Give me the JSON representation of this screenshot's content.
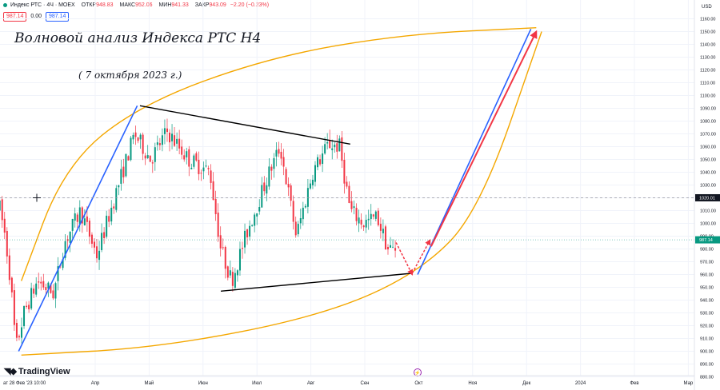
{
  "header": {
    "symbol": "Индекс РТС · 4Ч · MOEX",
    "open_label": "ОТКР",
    "open_value": "948.83",
    "high_label": "МАКС",
    "high_value": "952.06",
    "low_label": "МИН",
    "low_value": "941.33",
    "close_label": "ЗАКР",
    "close_value": "943.09",
    "change": "−2.20 (−0.23%)",
    "bid": "987.14",
    "spread": "0.00",
    "ask": "987.14"
  },
  "annotations": {
    "title": "Волновой анализ Индекса РТС Н4",
    "date": "( 7 октября 2023 г.)"
  },
  "branding": {
    "logo": "TradingView"
  },
  "bottom_info": "ат 28 Фев '23   10:00",
  "colors": {
    "bull_candle": "#089981",
    "bear_candle": "#f23645",
    "impulse_line": "#2962ff",
    "forecast_line": "#f23645",
    "channel_curve": "#f4a700",
    "triangle_line": "#000000"
  },
  "chart_data": {
    "type": "candlestick",
    "currency": "USD",
    "y_range": [
      880,
      1170
    ],
    "price_axis_ticks": [
      880,
      890,
      900,
      910,
      920,
      930,
      940,
      950,
      960,
      970,
      980,
      990,
      1000,
      1010,
      1020,
      1030,
      1040,
      1050,
      1060,
      1070,
      1080,
      1090,
      1100,
      1110,
      1120,
      1130,
      1140,
      1150,
      1160
    ],
    "time_axis_labels": [
      "Апр",
      "Май",
      "Июн",
      "Июл",
      "Авг",
      "Сен",
      "Окт",
      "Ноя",
      "Дек",
      "2024",
      "Фев",
      "Мар"
    ],
    "current_price": "987.14",
    "crosshair_price": "1020.01",
    "price_path": [
      {
        "t": 0.0,
        "p": 1012
      },
      {
        "t": 0.1,
        "p": 990
      },
      {
        "t": 0.2,
        "p": 955
      },
      {
        "t": 0.3,
        "p": 902
      },
      {
        "t": 0.45,
        "p": 930
      },
      {
        "t": 0.7,
        "p": 955
      },
      {
        "t": 1.0,
        "p": 945
      },
      {
        "t": 1.2,
        "p": 985
      },
      {
        "t": 1.5,
        "p": 1010
      },
      {
        "t": 1.8,
        "p": 975
      },
      {
        "t": 2.2,
        "p": 1030
      },
      {
        "t": 2.5,
        "p": 1070
      },
      {
        "t": 2.8,
        "p": 1050
      },
      {
        "t": 3.1,
        "p": 1072
      },
      {
        "t": 3.5,
        "p": 1050
      },
      {
        "t": 3.9,
        "p": 1040
      },
      {
        "t": 4.1,
        "p": 980
      },
      {
        "t": 4.3,
        "p": 955
      },
      {
        "t": 4.6,
        "p": 995
      },
      {
        "t": 5.0,
        "p": 1040
      },
      {
        "t": 5.2,
        "p": 1060
      },
      {
        "t": 5.5,
        "p": 990
      },
      {
        "t": 5.8,
        "p": 1040
      },
      {
        "t": 6.1,
        "p": 1062
      },
      {
        "t": 6.3,
        "p": 1060
      },
      {
        "t": 6.5,
        "p": 1010
      },
      {
        "t": 6.75,
        "p": 1000
      },
      {
        "t": 7.0,
        "p": 1005
      },
      {
        "t": 7.2,
        "p": 980
      },
      {
        "t": 7.35,
        "p": 980
      }
    ],
    "drawings": [
      {
        "name": "impulse-wave-line",
        "from": {
          "t": 0.35,
          "p": 900
        },
        "to": {
          "t": 2.55,
          "p": 1092
        }
      },
      {
        "name": "forecast-impulse-line",
        "from": {
          "t": 7.75,
          "p": 960
        },
        "to": {
          "t": 9.85,
          "p": 1152
        }
      },
      {
        "name": "forecast-wave-arrow",
        "from": {
          "t": 8.0,
          "p": 982
        },
        "to": {
          "t": 9.95,
          "p": 1150
        }
      },
      {
        "name": "triangle-upper-line",
        "from": {
          "t": 2.6,
          "p": 1092
        },
        "to": {
          "t": 6.5,
          "p": 1062
        }
      },
      {
        "name": "triangle-lower-line",
        "from": {
          "t": 4.1,
          "p": 947
        },
        "to": {
          "t": 7.65,
          "p": 961
        }
      },
      {
        "name": "wave-e-down-arrow",
        "from": {
          "t": 7.35,
          "p": 985
        },
        "to": {
          "t": 7.65,
          "p": 960
        }
      },
      {
        "name": "wave-e-up-arrow",
        "from": {
          "t": 7.65,
          "p": 961
        },
        "to": {
          "t": 7.98,
          "p": 987
        }
      }
    ],
    "channel_curves": [
      {
        "name": "upper-channel-curve",
        "points": [
          {
            "t": 0.4,
            "p": 955
          },
          {
            "t": 1.2,
            "p": 1045
          },
          {
            "t": 2.6,
            "p": 1093
          },
          {
            "t": 5.0,
            "p": 1130
          },
          {
            "t": 7.5,
            "p": 1148
          },
          {
            "t": 9.95,
            "p": 1153
          }
        ]
      },
      {
        "name": "lower-channel-curve",
        "points": [
          {
            "t": 0.4,
            "p": 897
          },
          {
            "t": 3.0,
            "p": 903
          },
          {
            "t": 6.0,
            "p": 928
          },
          {
            "t": 7.8,
            "p": 962
          },
          {
            "t": 8.9,
            "p": 1010
          },
          {
            "t": 10.05,
            "p": 1150
          }
        ]
      }
    ]
  }
}
